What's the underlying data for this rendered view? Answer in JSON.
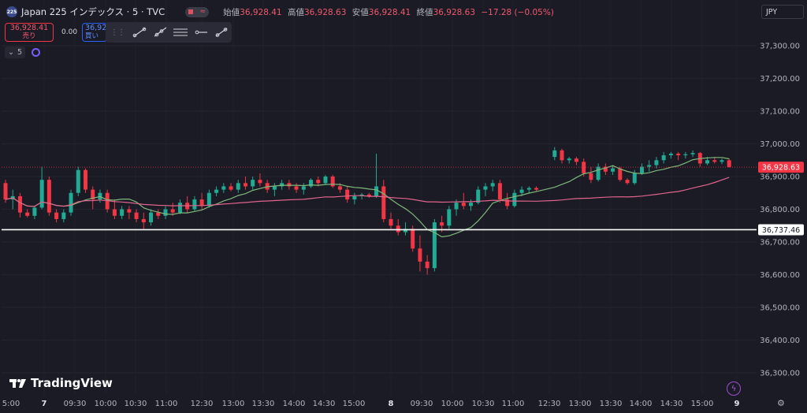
{
  "header": {
    "symbol_logo": "225",
    "title": "Japan 225 インデックス · 5 · TVC",
    "open_label": "始値",
    "open": "36,928.41",
    "high_label": "高値",
    "high": "36,928.63",
    "low_label": "安値",
    "low": "36,928.41",
    "close_label": "終値",
    "close": "36,928.63",
    "change": "−17.28 (−0.05%)"
  },
  "trade": {
    "sell_price": "36,928.41",
    "sell_label": "売り",
    "spread": "0.00",
    "buy_price": "36,928.63",
    "buy_label": "買い"
  },
  "toolbar": {
    "grip_icon": "drag-handle-icon",
    "tools": [
      "trend-line-icon",
      "ray-icon",
      "parallel-channel-icon",
      "horizontal-ray-icon",
      "info-line-icon"
    ]
  },
  "indicator": {
    "chevron": "⌄",
    "value": "5"
  },
  "currency": "JPY",
  "branding": "TradingView",
  "colors": {
    "up": "#22ab94",
    "down": "#f23645",
    "ma_fast": "#7fb87a",
    "ma_slow": "#e1648c",
    "hline": "#ffffff",
    "bg": "#1a1b25"
  },
  "chart_data": {
    "type": "candlestick",
    "ylim": [
      36270,
      37340
    ],
    "y_ticks": [
      "37,300.00",
      "37,200.00",
      "37,100.00",
      "37,000.00",
      "36,900.00",
      "36,800.00",
      "36,700.00",
      "36,600.00",
      "36,500.00",
      "36,400.00",
      "36,300.00"
    ],
    "y_tick_values": [
      37300,
      37200,
      37100,
      37000,
      36900,
      36800,
      36700,
      36600,
      36500,
      36400,
      36300
    ],
    "x_labels": [
      "5:00",
      "7",
      "09:30",
      "10:00",
      "10:30",
      "11:00",
      "12:30",
      "13:00",
      "13:30",
      "14:00",
      "14:30",
      "15:00",
      "8",
      "09:30",
      "10:00",
      "10:30",
      "11:00",
      "12:30",
      "13:00",
      "13:30",
      "14:00",
      "14:30",
      "15:00",
      "9"
    ],
    "bold_x_labels": [
      "7",
      "8",
      "9"
    ],
    "current_price": "36,928.63",
    "current_price_value": 36928.63,
    "horizontal_line": "36,737.46",
    "horizontal_line_value": 36737.46,
    "candles": [
      [
        36880,
        36890,
        36820,
        36830
      ],
      [
        36830,
        36860,
        36800,
        36840
      ],
      [
        36840,
        36850,
        36775,
        36790
      ],
      [
        36790,
        36800,
        36775,
        36780
      ],
      [
        36780,
        36810,
        36770,
        36805
      ],
      [
        36805,
        36930,
        36800,
        36890
      ],
      [
        36890,
        36900,
        36780,
        36790
      ],
      [
        36790,
        36800,
        36760,
        36770
      ],
      [
        36770,
        36800,
        36760,
        36790
      ],
      [
        36790,
        36860,
        36780,
        36850
      ],
      [
        36850,
        36930,
        36840,
        36920
      ],
      [
        36920,
        36925,
        36850,
        36860
      ],
      [
        36860,
        36870,
        36800,
        36830
      ],
      [
        36830,
        36860,
        36820,
        36850
      ],
      [
        36850,
        36860,
        36790,
        36800
      ],
      [
        36800,
        36830,
        36770,
        36780
      ],
      [
        36780,
        36810,
        36770,
        36800
      ],
      [
        36800,
        36810,
        36770,
        36790
      ],
      [
        36790,
        36800,
        36760,
        36770
      ],
      [
        36770,
        36790,
        36740,
        36760
      ],
      [
        36760,
        36800,
        36750,
        36790
      ],
      [
        36790,
        36800,
        36770,
        36780
      ],
      [
        36780,
        36810,
        36770,
        36800
      ],
      [
        36800,
        36820,
        36780,
        36790
      ],
      [
        36790,
        36830,
        36785,
        36820
      ],
      [
        36820,
        36840,
        36790,
        36800
      ],
      [
        36800,
        36840,
        36795,
        36830
      ],
      [
        36830,
        36850,
        36800,
        36810
      ],
      [
        36810,
        36860,
        36805,
        36850
      ],
      [
        36850,
        36870,
        36840,
        36860
      ],
      [
        36860,
        36880,
        36850,
        36870
      ],
      [
        36870,
        36880,
        36855,
        36860
      ],
      [
        36860,
        36890,
        36850,
        36880
      ],
      [
        36880,
        36900,
        36860,
        36870
      ],
      [
        36870,
        36900,
        36860,
        36890
      ],
      [
        36890,
        36910,
        36870,
        36880
      ],
      [
        36880,
        36890,
        36850,
        36860
      ],
      [
        36860,
        36880,
        36840,
        36870
      ],
      [
        36870,
        36890,
        36860,
        36880
      ],
      [
        36880,
        36890,
        36860,
        36870
      ],
      [
        36870,
        36880,
        36850,
        36860
      ],
      [
        36860,
        36880,
        36845,
        36870
      ],
      [
        36870,
        36895,
        36865,
        36890
      ],
      [
        36890,
        36900,
        36870,
        36880
      ],
      [
        36880,
        36905,
        36875,
        36900
      ],
      [
        36900,
        36905,
        36865,
        36870
      ],
      [
        36870,
        36880,
        36850,
        36860
      ],
      [
        36860,
        36870,
        36820,
        36830
      ],
      [
        36830,
        36850,
        36815,
        36840
      ],
      [
        36840,
        36850,
        36830,
        36845
      ],
      [
        36845,
        36850,
        36835,
        36840
      ],
      [
        36840,
        36970,
        36835,
        36870
      ],
      [
        36870,
        36890,
        36760,
        36770
      ],
      [
        36770,
        36790,
        36740,
        36750
      ],
      [
        36750,
        36770,
        36720,
        36730
      ],
      [
        36730,
        36760,
        36720,
        36740
      ],
      [
        36740,
        36750,
        36670,
        36680
      ],
      [
        36680,
        36720,
        36610,
        36640
      ],
      [
        36640,
        36660,
        36600,
        36620
      ],
      [
        36620,
        36770,
        36610,
        36760
      ],
      [
        36760,
        36780,
        36730,
        36750
      ],
      [
        36750,
        36810,
        36740,
        36800
      ],
      [
        36800,
        36830,
        36780,
        36820
      ],
      [
        36820,
        36850,
        36800,
        36810
      ],
      [
        36810,
        36830,
        36795,
        36820
      ],
      [
        36820,
        36870,
        36815,
        36860
      ],
      [
        36860,
        36880,
        36840,
        36870
      ],
      [
        36870,
        36890,
        36855,
        36880
      ],
      [
        36880,
        36890,
        36820,
        36830
      ],
      [
        36830,
        36850,
        36800,
        36810
      ],
      [
        36810,
        36860,
        36805,
        36850
      ],
      [
        36850,
        36870,
        36840,
        36860
      ],
      [
        36860,
        36870,
        36850,
        36865
      ],
      [
        36865,
        36870,
        36855,
        36860
      ],
      [
        36960,
        36990,
        36950,
        36980
      ],
      [
        36980,
        36985,
        36940,
        36950
      ],
      [
        36950,
        36960,
        36940,
        36955
      ],
      [
        36955,
        36960,
        36935,
        36945
      ],
      [
        36945,
        36955,
        36900,
        36910
      ],
      [
        36910,
        36930,
        36880,
        36890
      ],
      [
        36890,
        36940,
        36885,
        36930
      ],
      [
        36930,
        36940,
        36905,
        36915
      ],
      [
        36915,
        36935,
        36905,
        36925
      ],
      [
        36925,
        36930,
        36885,
        36890
      ],
      [
        36890,
        36895,
        36875,
        36880
      ],
      [
        36880,
        36920,
        36875,
        36910
      ],
      [
        36910,
        36940,
        36905,
        36930
      ],
      [
        36930,
        36950,
        36915,
        36935
      ],
      [
        36935,
        36960,
        36925,
        36950
      ],
      [
        36950,
        36975,
        36940,
        36965
      ],
      [
        36965,
        36975,
        36955,
        36970
      ],
      [
        36970,
        36975,
        36950,
        36965
      ],
      [
        36965,
        36975,
        36955,
        36968
      ],
      [
        36968,
        36980,
        36960,
        36972
      ],
      [
        36972,
        36975,
        36930,
        36940
      ],
      [
        36940,
        36960,
        36935,
        36950
      ],
      [
        36950,
        36960,
        36940,
        36945
      ],
      [
        36945,
        36955,
        36938,
        36950
      ],
      [
        36950,
        36955,
        36928,
        36929
      ]
    ],
    "gaps_after": [
      73
    ]
  }
}
